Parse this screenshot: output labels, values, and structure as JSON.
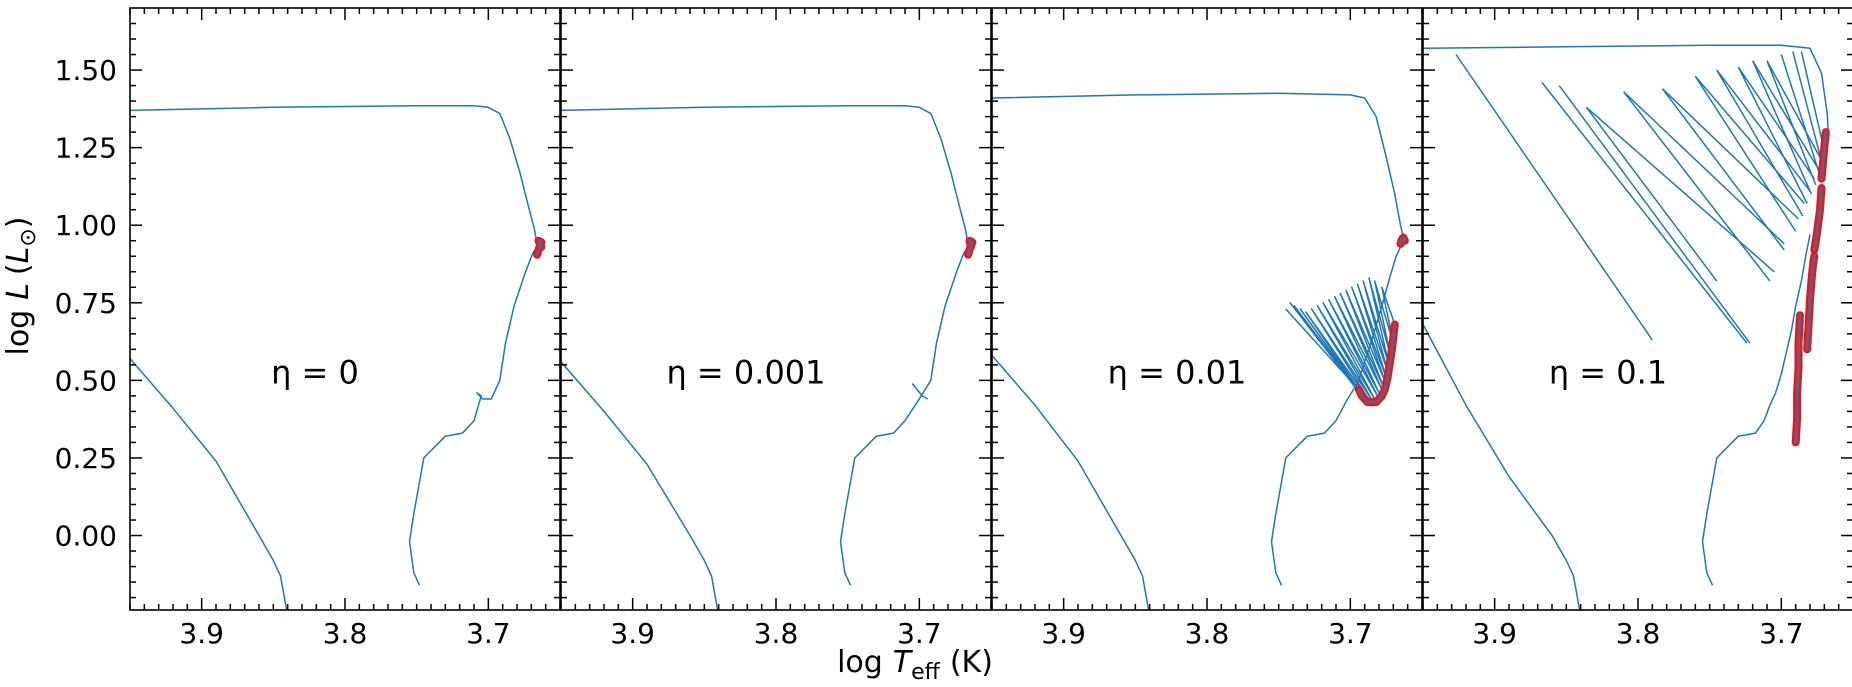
{
  "figure": {
    "xlabel_prefix": "log",
    "xlabel_symbol": "T",
    "xlabel_sub": "eff",
    "xlabel_unit": "(K)",
    "ylabel_prefix": "log",
    "ylabel_symbol": "L",
    "ylabel_sub": "⊙",
    "colors": {
      "track": "#1f77b4",
      "marker_face": "#7a5573",
      "marker_edge": "#e8141e",
      "axes": "#000000"
    }
  },
  "chart_data": [
    {
      "type": "line",
      "annotation": "η = 0",
      "xlim": [
        3.95,
        3.65
      ],
      "ylim": [
        -0.24,
        1.7
      ],
      "xticks": [
        "3.9",
        "3.8",
        "3.7"
      ],
      "yticks": [
        "0.00",
        "0.25",
        "0.50",
        "0.75",
        "1.00",
        "1.25",
        "1.50"
      ],
      "series": [
        {
          "role": "track",
          "x": [
            3.95,
            3.92,
            3.89,
            3.86,
            3.85,
            3.845,
            3.84
          ],
          "y": [
            0.57,
            0.41,
            0.24,
            0.0,
            -0.08,
            -0.13,
            -0.26
          ]
        },
        {
          "role": "track",
          "x": [
            3.748,
            3.752,
            3.755,
            3.752,
            3.745,
            3.73,
            3.718,
            3.71,
            3.705,
            3.708,
            3.704,
            3.698,
            3.692,
            3.688,
            3.682,
            3.674,
            3.669,
            3.666,
            3.665,
            3.663
          ],
          "y": [
            -0.16,
            -0.12,
            -0.02,
            0.07,
            0.25,
            0.32,
            0.33,
            0.37,
            0.45,
            0.46,
            0.44,
            0.44,
            0.5,
            0.62,
            0.74,
            0.85,
            0.91,
            0.93,
            0.94,
            0.95
          ]
        },
        {
          "role": "track",
          "x": [
            3.95,
            3.85,
            3.75,
            3.71,
            3.7,
            3.692,
            3.685,
            3.678,
            3.672,
            3.668,
            3.666
          ],
          "y": [
            1.37,
            1.38,
            1.385,
            1.385,
            1.38,
            1.36,
            1.28,
            1.17,
            1.06,
            0.99,
            0.94
          ]
        },
        {
          "role": "marker",
          "x": [
            3.666,
            3.665,
            3.664,
            3.663,
            3.665,
            3.664,
            3.663
          ],
          "y": [
            0.905,
            0.92,
            0.935,
            0.945,
            0.95,
            0.94,
            0.93
          ]
        }
      ]
    },
    {
      "type": "line",
      "annotation": "η = 0.001",
      "xlim": [
        3.95,
        3.65
      ],
      "ylim": [
        -0.24,
        1.7
      ],
      "xticks": [
        "3.9",
        "3.8",
        "3.7"
      ],
      "yticks": [
        "0.00",
        "0.25",
        "0.50",
        "0.75",
        "1.00",
        "1.25",
        "1.50"
      ],
      "series": [
        {
          "role": "track",
          "x": [
            3.95,
            3.92,
            3.89,
            3.86,
            3.85,
            3.845,
            3.84
          ],
          "y": [
            0.56,
            0.4,
            0.23,
            0.0,
            -0.08,
            -0.13,
            -0.26
          ]
        },
        {
          "role": "track",
          "x": [
            3.748,
            3.752,
            3.755,
            3.752,
            3.745,
            3.73,
            3.718,
            3.71,
            3.7,
            3.692,
            3.688,
            3.682,
            3.674,
            3.669,
            3.666,
            3.664
          ],
          "y": [
            -0.16,
            -0.12,
            -0.02,
            0.07,
            0.25,
            0.32,
            0.33,
            0.37,
            0.44,
            0.5,
            0.62,
            0.74,
            0.85,
            0.91,
            0.93,
            0.95
          ]
        },
        {
          "role": "track",
          "x": [
            3.705,
            3.698,
            3.694
          ],
          "y": [
            0.49,
            0.45,
            0.44
          ]
        },
        {
          "role": "track",
          "x": [
            3.95,
            3.85,
            3.75,
            3.71,
            3.7,
            3.692,
            3.685,
            3.678,
            3.672,
            3.668,
            3.666
          ],
          "y": [
            1.37,
            1.38,
            1.385,
            1.385,
            1.38,
            1.36,
            1.28,
            1.17,
            1.06,
            0.99,
            0.94
          ]
        },
        {
          "role": "marker",
          "x": [
            3.666,
            3.665,
            3.664,
            3.663,
            3.665,
            3.664
          ],
          "y": [
            0.905,
            0.92,
            0.935,
            0.945,
            0.95,
            0.93
          ]
        }
      ]
    },
    {
      "type": "line",
      "annotation": "η = 0.01",
      "xlim": [
        3.95,
        3.65
      ],
      "ylim": [
        -0.24,
        1.7
      ],
      "xticks": [
        "3.9",
        "3.8",
        "3.7"
      ],
      "yticks": [
        "0.00",
        "0.25",
        "0.50",
        "0.75",
        "1.00",
        "1.25",
        "1.50"
      ],
      "series": [
        {
          "role": "track",
          "x": [
            3.95,
            3.92,
            3.89,
            3.86,
            3.85,
            3.845,
            3.84
          ],
          "y": [
            0.58,
            0.42,
            0.24,
            0.0,
            -0.08,
            -0.13,
            -0.26
          ]
        },
        {
          "role": "track",
          "x": [
            3.748,
            3.752,
            3.755,
            3.752,
            3.745,
            3.73,
            3.718,
            3.71,
            3.702,
            3.695,
            3.69,
            3.685,
            3.678,
            3.672,
            3.668,
            3.665,
            3.663
          ],
          "y": [
            -0.16,
            -0.12,
            -0.02,
            0.07,
            0.25,
            0.32,
            0.33,
            0.37,
            0.44,
            0.49,
            0.56,
            0.63,
            0.74,
            0.84,
            0.9,
            0.93,
            0.96
          ]
        },
        {
          "role": "track",
          "x": [
            3.95,
            3.85,
            3.75,
            3.7,
            3.69,
            3.682,
            3.675,
            3.669,
            3.665,
            3.663
          ],
          "y": [
            1.41,
            1.42,
            1.425,
            1.42,
            1.41,
            1.35,
            1.22,
            1.1,
            1.0,
            0.96
          ]
        },
        {
          "role": "osc",
          "x": [
            3.745,
            3.694,
            3.742,
            3.692,
            3.739,
            3.69,
            3.735,
            3.688,
            3.731,
            3.686,
            3.727,
            3.684,
            3.723,
            3.683,
            3.719,
            3.681,
            3.715,
            3.68,
            3.711,
            3.678,
            3.707,
            3.677,
            3.703,
            3.676,
            3.699,
            3.675,
            3.695,
            3.674,
            3.691,
            3.673,
            3.687,
            3.672,
            3.683,
            3.67,
            3.678,
            3.669
          ],
          "y": [
            0.73,
            0.47,
            0.75,
            0.45,
            0.74,
            0.44,
            0.73,
            0.43,
            0.72,
            0.43,
            0.73,
            0.43,
            0.74,
            0.44,
            0.75,
            0.45,
            0.76,
            0.46,
            0.77,
            0.47,
            0.78,
            0.48,
            0.79,
            0.5,
            0.8,
            0.51,
            0.81,
            0.53,
            0.82,
            0.55,
            0.83,
            0.58,
            0.82,
            0.62,
            0.8,
            0.68
          ]
        },
        {
          "role": "marker",
          "x": [
            3.694,
            3.692,
            3.69,
            3.688,
            3.686,
            3.684,
            3.682,
            3.68,
            3.678,
            3.676,
            3.675,
            3.674,
            3.673,
            3.672,
            3.671,
            3.67,
            3.669
          ],
          "y": [
            0.47,
            0.45,
            0.44,
            0.43,
            0.43,
            0.43,
            0.43,
            0.44,
            0.45,
            0.47,
            0.49,
            0.51,
            0.54,
            0.57,
            0.6,
            0.64,
            0.68
          ]
        },
        {
          "role": "marker",
          "x": [
            3.665,
            3.664,
            3.663,
            3.662
          ],
          "y": [
            0.94,
            0.955,
            0.96,
            0.95
          ]
        }
      ]
    },
    {
      "type": "line",
      "annotation": "η = 0.1",
      "xlim": [
        3.95,
        3.65
      ],
      "ylim": [
        -0.24,
        1.7
      ],
      "xticks": [
        "3.9",
        "3.8",
        "3.7"
      ],
      "yticks": [
        "0.00",
        "0.25",
        "0.50",
        "0.75",
        "1.00",
        "1.25",
        "1.50"
      ],
      "series": [
        {
          "role": "track",
          "x": [
            3.95,
            3.92,
            3.89,
            3.86,
            3.85,
            3.845,
            3.84
          ],
          "y": [
            0.68,
            0.42,
            0.19,
            0.0,
            -0.08,
            -0.13,
            -0.26
          ]
        },
        {
          "role": "track",
          "x": [
            3.748,
            3.752,
            3.755,
            3.752,
            3.745,
            3.73,
            3.718,
            3.712,
            3.708,
            3.704,
            3.7,
            3.697,
            3.693,
            3.69,
            3.686,
            3.683,
            3.68
          ],
          "y": [
            -0.16,
            -0.12,
            -0.02,
            0.07,
            0.25,
            0.32,
            0.33,
            0.37,
            0.42,
            0.46,
            0.52,
            0.58,
            0.66,
            0.74,
            0.82,
            0.9,
            0.97
          ]
        },
        {
          "role": "track",
          "x": [
            3.95,
            3.85,
            3.75,
            3.7,
            3.68,
            3.672,
            3.668,
            3.667
          ],
          "y": [
            1.57,
            1.575,
            1.58,
            1.58,
            1.57,
            1.49,
            1.36,
            1.28
          ]
        },
        {
          "role": "line",
          "x": [
            3.927,
            3.79
          ],
          "y": [
            1.55,
            0.63
          ]
        },
        {
          "role": "line",
          "x": [
            3.855,
            3.722
          ],
          "y": [
            1.45,
            0.62
          ]
        },
        {
          "role": "line",
          "x": [
            3.836,
            3.745
          ],
          "y": [
            1.38,
            0.82
          ]
        },
        {
          "role": "line",
          "x": [
            3.81,
            3.708
          ],
          "y": [
            1.43,
            0.82
          ]
        },
        {
          "role": "line",
          "x": [
            3.783,
            3.698
          ],
          "y": [
            1.44,
            0.92
          ]
        },
        {
          "role": "line",
          "x": [
            3.76,
            3.69
          ],
          "y": [
            1.48,
            0.98
          ]
        },
        {
          "role": "line",
          "x": [
            3.745,
            3.685
          ],
          "y": [
            1.5,
            1.03
          ]
        },
        {
          "role": "line",
          "x": [
            3.73,
            3.682
          ],
          "y": [
            1.51,
            1.07
          ]
        },
        {
          "role": "line",
          "x": [
            3.72,
            3.679
          ],
          "y": [
            1.53,
            1.1
          ]
        },
        {
          "role": "line",
          "x": [
            3.71,
            3.676
          ],
          "y": [
            1.53,
            1.13
          ]
        },
        {
          "role": "line",
          "x": [
            3.7,
            3.673
          ],
          "y": [
            1.55,
            1.16
          ]
        },
        {
          "role": "line",
          "x": [
            3.692,
            3.671
          ],
          "y": [
            1.56,
            1.19
          ]
        },
        {
          "role": "line",
          "x": [
            3.686,
            3.669
          ],
          "y": [
            1.56,
            1.22
          ]
        },
        {
          "role": "line",
          "x": [
            3.867,
            3.724
          ],
          "y": [
            1.46,
            0.62
          ]
        },
        {
          "role": "line",
          "x": [
            3.836,
            3.705
          ],
          "y": [
            1.38,
            0.85
          ]
        },
        {
          "role": "line",
          "x": [
            3.81,
            3.698
          ],
          "y": [
            1.43,
            0.94
          ]
        },
        {
          "role": "line",
          "x": [
            3.783,
            3.688
          ],
          "y": [
            1.44,
            1.02
          ]
        },
        {
          "role": "line",
          "x": [
            3.76,
            3.684
          ],
          "y": [
            1.48,
            1.07
          ]
        },
        {
          "role": "line",
          "x": [
            3.745,
            3.68
          ],
          "y": [
            1.5,
            1.11
          ]
        },
        {
          "role": "line",
          "x": [
            3.73,
            3.677
          ],
          "y": [
            1.51,
            1.15
          ]
        },
        {
          "role": "line",
          "x": [
            3.72,
            3.674
          ],
          "y": [
            1.53,
            1.18
          ]
        },
        {
          "role": "line",
          "x": [
            3.71,
            3.672
          ],
          "y": [
            1.53,
            1.21
          ]
        },
        {
          "role": "marker",
          "x": [
            3.69,
            3.689,
            3.689,
            3.688,
            3.688,
            3.687
          ],
          "y": [
            0.3,
            0.38,
            0.46,
            0.54,
            0.62,
            0.71
          ]
        },
        {
          "role": "marker",
          "x": [
            3.682,
            3.681,
            3.68,
            3.679,
            3.678,
            3.677
          ],
          "y": [
            0.6,
            0.68,
            0.76,
            0.82,
            0.87,
            0.9
          ]
        },
        {
          "role": "marker",
          "x": [
            3.677,
            3.675,
            3.673,
            3.672
          ],
          "y": [
            0.92,
            0.98,
            1.05,
            1.12
          ]
        },
        {
          "role": "marker",
          "x": [
            3.672,
            3.671,
            3.67,
            3.669
          ],
          "y": [
            1.15,
            1.2,
            1.25,
            1.3
          ]
        }
      ]
    }
  ]
}
